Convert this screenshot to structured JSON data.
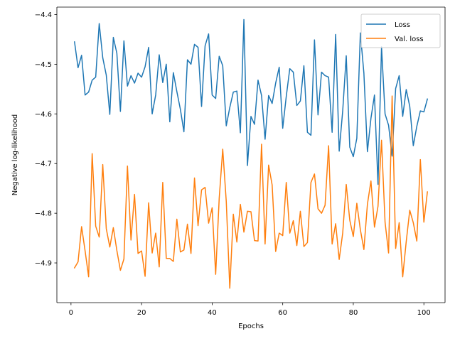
{
  "chart_data": {
    "type": "line",
    "title": "",
    "xlabel": "Epochs",
    "ylabel": "Negative log-likelihood",
    "xlim": [
      -4,
      106
    ],
    "ylim": [
      -4.98,
      -4.385
    ],
    "xticks": [
      0,
      20,
      40,
      60,
      80,
      100
    ],
    "yticks": [
      -4.4,
      -4.5,
      -4.6,
      -4.7,
      -4.8,
      -4.9
    ],
    "xtick_labels": [
      "0",
      "20",
      "40",
      "60",
      "80",
      "100"
    ],
    "ytick_labels": [
      "−4.4",
      "−4.5",
      "−4.6",
      "−4.7",
      "−4.8",
      "−4.9"
    ],
    "grid": false,
    "legend_position": "top-right",
    "x": [
      1,
      2,
      3,
      4,
      5,
      6,
      7,
      8,
      9,
      10,
      11,
      12,
      13,
      14,
      15,
      16,
      17,
      18,
      19,
      20,
      21,
      22,
      23,
      24,
      25,
      26,
      27,
      28,
      29,
      30,
      31,
      32,
      33,
      34,
      35,
      36,
      37,
      38,
      39,
      40,
      41,
      42,
      43,
      44,
      45,
      46,
      47,
      48,
      49,
      50,
      51,
      52,
      53,
      54,
      55,
      56,
      57,
      58,
      59,
      60,
      61,
      62,
      63,
      64,
      65,
      66,
      67,
      68,
      69,
      70,
      71,
      72,
      73,
      74,
      75,
      76,
      77,
      78,
      79,
      80,
      81,
      82,
      83,
      84,
      85,
      86,
      87,
      88,
      89,
      90,
      91,
      92,
      93,
      94,
      95,
      96,
      97,
      98,
      99,
      100,
      101
    ],
    "series": [
      {
        "name": "Loss",
        "color": "#1f77b4",
        "values": [
          -4.455,
          -4.507,
          -4.482,
          -4.562,
          -4.556,
          -4.532,
          -4.526,
          -4.418,
          -4.487,
          -4.522,
          -4.601,
          -4.446,
          -4.478,
          -4.595,
          -4.453,
          -4.544,
          -4.523,
          -4.538,
          -4.518,
          -4.526,
          -4.505,
          -4.466,
          -4.6,
          -4.562,
          -4.481,
          -4.537,
          -4.5,
          -4.616,
          -4.517,
          -4.555,
          -4.591,
          -4.636,
          -4.491,
          -4.5,
          -4.46,
          -4.466,
          -4.585,
          -4.463,
          -4.439,
          -4.562,
          -4.569,
          -4.484,
          -4.503,
          -4.624,
          -4.587,
          -4.556,
          -4.554,
          -4.638,
          -4.41,
          -4.704,
          -4.605,
          -4.621,
          -4.532,
          -4.563,
          -4.651,
          -4.563,
          -4.579,
          -4.538,
          -4.506,
          -4.629,
          -4.565,
          -4.509,
          -4.516,
          -4.583,
          -4.574,
          -4.503,
          -4.637,
          -4.643,
          -4.451,
          -4.602,
          -4.516,
          -4.523,
          -4.526,
          -4.637,
          -4.44,
          -4.675,
          -4.594,
          -4.483,
          -4.667,
          -4.686,
          -4.649,
          -4.437,
          -4.518,
          -4.676,
          -4.609,
          -4.562,
          -4.742,
          -4.465,
          -4.6,
          -4.623,
          -4.685,
          -4.549,
          -4.523,
          -4.605,
          -4.551,
          -4.585,
          -4.664,
          -4.625,
          -4.594,
          -4.596,
          -4.57
        ]
      },
      {
        "name": "Val. loss",
        "color": "#ff7f0e",
        "values": [
          -4.91,
          -4.898,
          -4.827,
          -4.876,
          -4.928,
          -4.68,
          -4.826,
          -4.848,
          -4.702,
          -4.831,
          -4.868,
          -4.829,
          -4.875,
          -4.915,
          -4.892,
          -4.705,
          -4.854,
          -4.762,
          -4.881,
          -4.876,
          -4.927,
          -4.779,
          -4.88,
          -4.84,
          -4.908,
          -4.738,
          -4.891,
          -4.891,
          -4.897,
          -4.812,
          -4.878,
          -4.874,
          -4.822,
          -4.881,
          -4.729,
          -4.825,
          -4.753,
          -4.748,
          -4.82,
          -4.789,
          -4.923,
          -4.77,
          -4.671,
          -4.776,
          -4.951,
          -4.802,
          -4.858,
          -4.782,
          -4.838,
          -4.796,
          -4.797,
          -4.855,
          -4.856,
          -4.661,
          -4.862,
          -4.703,
          -4.743,
          -4.877,
          -4.84,
          -4.845,
          -4.738,
          -4.84,
          -4.815,
          -4.865,
          -4.796,
          -4.867,
          -4.859,
          -4.738,
          -4.721,
          -4.791,
          -4.8,
          -4.784,
          -4.664,
          -4.862,
          -4.821,
          -4.893,
          -4.84,
          -4.742,
          -4.814,
          -4.847,
          -4.78,
          -4.833,
          -4.873,
          -4.782,
          -4.735,
          -4.828,
          -4.786,
          -4.653,
          -4.818,
          -4.88,
          -4.564,
          -4.871,
          -4.819,
          -4.928,
          -4.857,
          -4.794,
          -4.819,
          -4.856,
          -4.692,
          -4.818,
          -4.757
        ]
      }
    ]
  }
}
